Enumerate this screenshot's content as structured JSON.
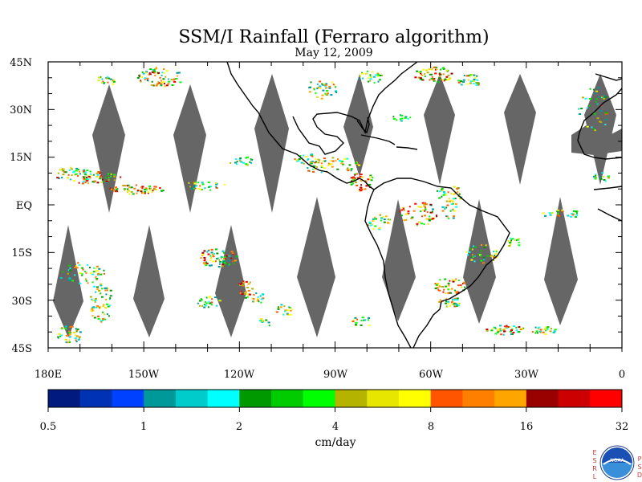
{
  "title": "SSM/I Rainfall (Ferraro algorithm)",
  "subtitle": "May 12, 2009",
  "map": {
    "lat_labels": [
      "45N",
      "30N",
      "15N",
      "EQ",
      "15S",
      "30S",
      "45S"
    ],
    "lon_labels": [
      "180E",
      "150W",
      "120W",
      "90W",
      "60W",
      "30W",
      "0"
    ],
    "swath_color": "#666666",
    "coast_color": "#000000"
  },
  "colorbar": {
    "colors": [
      "#001a80",
      "#0033b3",
      "#0040ff",
      "#009999",
      "#00cccc",
      "#00ffff",
      "#009900",
      "#00cc00",
      "#00ff00",
      "#b3b300",
      "#e6e600",
      "#ffff00",
      "#ff5500",
      "#ff8000",
      "#ffa500",
      "#990000",
      "#cc0000",
      "#ff0000"
    ],
    "tick_labels": [
      "0.5",
      "1",
      "2",
      "4",
      "8",
      "16",
      "32"
    ],
    "unit": "cm/day"
  },
  "logo": {
    "left_letters": [
      "E",
      "S",
      "R",
      "L"
    ],
    "right_letters": [
      "P",
      "S",
      "D"
    ],
    "center": "NOAA"
  }
}
